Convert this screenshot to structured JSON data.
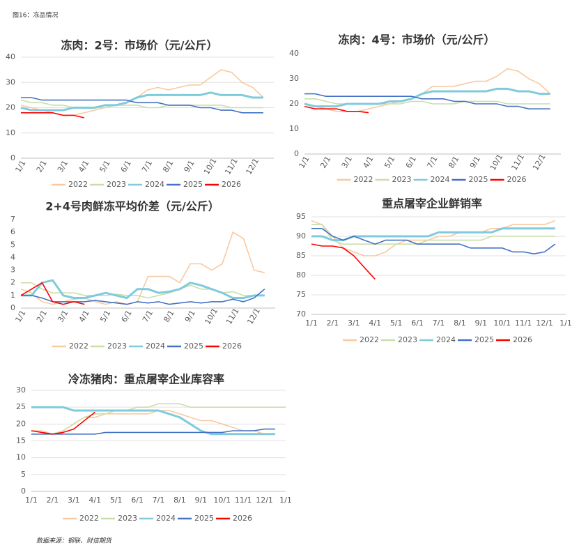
{
  "caption": "图16：冻品情况",
  "source": "数据来源：钢联、财信期货",
  "chart_data": [
    {
      "type": "line",
      "title": "冻肉：2号：市场价（元/公斤）",
      "categories": [
        "1/1",
        null,
        "2/1",
        null,
        "3/1",
        null,
        "4/1",
        null,
        "5/1",
        null,
        "6/1",
        null,
        "7/1",
        null,
        "8/1",
        null,
        "9/1",
        null,
        "10/1",
        null,
        "11/1",
        null,
        "12/1",
        null
      ],
      "ylim": [
        0,
        40
      ],
      "yticks": [
        0,
        10,
        20,
        30,
        40
      ],
      "grid": true,
      "series": [
        {
          "name": "2022",
          "color": "#f9c9a0",
          "values": [
            21,
            20,
            19,
            18,
            17,
            17,
            18,
            19,
            20,
            21,
            22,
            24,
            27,
            28,
            27,
            28,
            29,
            29,
            32,
            35,
            34,
            30,
            28,
            24
          ]
        },
        {
          "name": "2023",
          "color": "#c9dfa8",
          "values": [
            23,
            22,
            22,
            21,
            21,
            20,
            20,
            20,
            20,
            21,
            21,
            21,
            20,
            20,
            21,
            21,
            21,
            21,
            21,
            21,
            20,
            20,
            20,
            20
          ]
        },
        {
          "name": "2024",
          "color": "#7fcbdc",
          "values": [
            20,
            19,
            19,
            19,
            19,
            20,
            20,
            20,
            21,
            21,
            22,
            24,
            25,
            25,
            25,
            25,
            25,
            25,
            26,
            25,
            25,
            25,
            24,
            24
          ]
        },
        {
          "name": "2025",
          "color": "#4472c4",
          "values": [
            24,
            24,
            23,
            23,
            23,
            23,
            23,
            23,
            23,
            23,
            23,
            22,
            22,
            22,
            21,
            21,
            21,
            20,
            20,
            19,
            19,
            18,
            18,
            18
          ]
        },
        {
          "name": "2026",
          "color": "#ff0000",
          "values": [
            18,
            18,
            18,
            18,
            17,
            17,
            16,
            null,
            null,
            null,
            null,
            null,
            null,
            null,
            null,
            null,
            null,
            null,
            null,
            null,
            null,
            null,
            null,
            null
          ]
        }
      ]
    },
    {
      "type": "line",
      "title": "冻肉：4号：市场价（元/公斤）",
      "categories": [
        "1/1",
        null,
        "2/1",
        null,
        "3/1",
        null,
        "4/1",
        null,
        "5/1",
        null,
        "6/1",
        null,
        "7/1",
        null,
        "8/1",
        null,
        "9/1",
        null,
        "10/1",
        null,
        "11/1",
        null,
        "12/1",
        null
      ],
      "ylim": [
        0,
        40
      ],
      "yticks": [
        0,
        10,
        20,
        30,
        40
      ],
      "grid": false,
      "series": [
        {
          "name": "2022",
          "color": "#f9c9a0",
          "values": [
            20,
            19,
            18,
            17,
            17,
            17,
            18,
            19,
            20,
            21,
            22,
            24,
            27,
            27,
            27,
            28,
            29,
            29,
            31,
            34,
            33,
            30,
            28,
            24
          ]
        },
        {
          "name": "2023",
          "color": "#c9dfa8",
          "values": [
            22,
            22,
            21,
            20,
            20,
            20,
            20,
            20,
            20,
            20,
            21,
            21,
            20,
            20,
            20,
            21,
            21,
            21,
            21,
            20,
            20,
            20,
            20,
            20
          ]
        },
        {
          "name": "2024",
          "color": "#7fcbdc",
          "values": [
            20,
            19,
            19,
            19,
            20,
            20,
            20,
            20,
            21,
            21,
            22,
            24,
            25,
            25,
            25,
            25,
            25,
            25,
            26,
            26,
            25,
            25,
            24,
            24
          ]
        },
        {
          "name": "2025",
          "color": "#4472c4",
          "values": [
            24,
            24,
            23,
            23,
            23,
            23,
            23,
            23,
            23,
            23,
            23,
            22,
            22,
            22,
            21,
            21,
            20,
            20,
            20,
            19,
            19,
            18,
            18,
            18
          ]
        },
        {
          "name": "2026",
          "color": "#ff0000",
          "values": [
            19,
            18,
            18,
            18,
            17,
            17,
            16.5,
            null,
            null,
            null,
            null,
            null,
            null,
            null,
            null,
            null,
            null,
            null,
            null,
            null,
            null,
            null,
            null,
            null
          ]
        }
      ]
    },
    {
      "type": "line",
      "title": "2+4号肉鲜冻平均价差（元/公斤）",
      "categories": [
        "1/1",
        null,
        "2/1",
        null,
        "3/1",
        null,
        "4/1",
        null,
        "5/1",
        null,
        "6/1",
        null,
        "7/1",
        null,
        "8/1",
        null,
        "9/1",
        null,
        "10/1",
        null,
        "11/1",
        null,
        "12/1",
        null
      ],
      "ylim": [
        0,
        7
      ],
      "yticks": [
        0,
        1,
        2,
        3,
        4,
        5,
        6,
        7
      ],
      "grid": false,
      "series": [
        {
          "name": "2022",
          "color": "#f9c9a0",
          "values": [
            1.5,
            1.2,
            0.5,
            0.3,
            0.5,
            0.7,
            0.8,
            0.5,
            0.3,
            0.5,
            0.3,
            0.5,
            2.5,
            2.5,
            2.5,
            2,
            3.5,
            3.5,
            3,
            3.5,
            6,
            5.5,
            3,
            2.8
          ]
        },
        {
          "name": "2023",
          "color": "#c9dfa8",
          "values": [
            2,
            2,
            1.5,
            1.2,
            1.2,
            1.2,
            1,
            1,
            1,
            1.1,
            1,
            1,
            0.8,
            1,
            1.2,
            1.5,
            1.8,
            1.5,
            1.5,
            1.2,
            1.3,
            1,
            1,
            1
          ]
        },
        {
          "name": "2024",
          "color": "#7fcbdc",
          "values": [
            1,
            1,
            2,
            2.2,
            1,
            0.8,
            0.8,
            1,
            1.2,
            1,
            0.8,
            1.5,
            1.5,
            1.2,
            1.3,
            1.5,
            2,
            1.8,
            1.5,
            1.2,
            0.8,
            0.8,
            1,
            1
          ]
        },
        {
          "name": "2025",
          "color": "#4472c4",
          "values": [
            1,
            1,
            0.8,
            0.5,
            0.5,
            0.5,
            0.5,
            0.6,
            0.5,
            0.4,
            0.3,
            0.5,
            0.4,
            0.5,
            0.3,
            0.4,
            0.5,
            0.4,
            0.5,
            0.5,
            0.7,
            0.5,
            0.8,
            1.5
          ]
        },
        {
          "name": "2026",
          "color": "#ff0000",
          "values": [
            1,
            1.5,
            2,
            0.5,
            0.3,
            0.5,
            0.3,
            null,
            null,
            null,
            null,
            null,
            null,
            null,
            null,
            null,
            null,
            null,
            null,
            null,
            null,
            null,
            null,
            null
          ]
        }
      ]
    },
    {
      "type": "line",
      "title": "重点屠宰企业鲜销率",
      "categories": [
        "1/1",
        null,
        "2/1",
        null,
        "3/1",
        null,
        "4/1",
        null,
        "5/1",
        null,
        "6/1",
        null,
        "7/1",
        null,
        "8/1",
        null,
        "9/1",
        null,
        "10/1",
        null,
        "11/1",
        null,
        "12/1",
        null,
        "1/1"
      ],
      "ylim": [
        70,
        95
      ],
      "yticks": [
        70,
        75,
        80,
        85,
        90,
        95
      ],
      "grid": true,
      "series": [
        {
          "name": "2022",
          "color": "#f9c9a0",
          "values": [
            94,
            93,
            90,
            87,
            86,
            85,
            85,
            86,
            88,
            89,
            89,
            89,
            90,
            90,
            91,
            91,
            91,
            92,
            92,
            93,
            93,
            93,
            93,
            94,
            null
          ]
        },
        {
          "name": "2023",
          "color": "#c9dfa8",
          "values": [
            93,
            93,
            89,
            88,
            88,
            88,
            88,
            88,
            88,
            88,
            88,
            89,
            89,
            89,
            89,
            89,
            89,
            90,
            90,
            90,
            90,
            90,
            90,
            90,
            null
          ]
        },
        {
          "name": "2024",
          "color": "#7fcbdc",
          "values": [
            90,
            90,
            89,
            89,
            90,
            90,
            90,
            90,
            90,
            90,
            90,
            90,
            91,
            91,
            91,
            91,
            91,
            91,
            92,
            92,
            92,
            92,
            92,
            92,
            null
          ]
        },
        {
          "name": "2025",
          "color": "#4472c4",
          "values": [
            92,
            92,
            90,
            89,
            90,
            89,
            88,
            89,
            89,
            89,
            88,
            88,
            88,
            88,
            88,
            87,
            87,
            87,
            87,
            86,
            86,
            85.5,
            86,
            88,
            null
          ]
        },
        {
          "name": "2026",
          "color": "#ff0000",
          "values": [
            88,
            87.5,
            87.5,
            87,
            85,
            82,
            79,
            null,
            null,
            null,
            null,
            null,
            null,
            null,
            null,
            null,
            null,
            null,
            null,
            null,
            null,
            null,
            null,
            null,
            null
          ]
        }
      ]
    },
    {
      "type": "line",
      "title": "冷冻猪肉：重点屠宰企业库容率",
      "categories": [
        "1/1",
        null,
        "2/1",
        null,
        "3/1",
        null,
        "4/1",
        null,
        "5/1",
        null,
        "6/1",
        null,
        "7/1",
        null,
        "8/1",
        null,
        "9/1",
        null,
        "10/1",
        null,
        "11/1",
        null,
        "12/1",
        null,
        "1/1"
      ],
      "ylim": [
        0,
        30
      ],
      "yticks": [
        0,
        5,
        10,
        15,
        20,
        25,
        30
      ],
      "grid": true,
      "series": [
        {
          "name": "2022",
          "color": "#f9c9a0",
          "values": [
            18,
            18,
            17,
            18,
            20,
            22,
            22,
            23,
            23,
            23,
            23,
            23,
            24,
            24,
            23,
            22,
            21,
            21,
            20,
            19,
            18,
            18,
            17,
            17,
            null
          ]
        },
        {
          "name": "2023",
          "color": "#c9dfa8",
          "values": [
            17,
            17,
            17,
            18,
            20,
            22,
            23,
            23,
            24,
            24,
            25,
            25,
            26,
            26,
            26,
            25,
            25,
            25,
            25,
            25,
            25,
            25,
            25,
            25,
            25
          ]
        },
        {
          "name": "2024",
          "color": "#7fcbdc",
          "values": [
            25,
            25,
            25,
            25,
            24,
            24,
            24,
            24,
            24,
            24,
            24,
            24,
            24,
            23,
            22,
            20,
            18,
            17,
            17,
            17,
            17,
            17,
            17,
            17,
            null
          ]
        },
        {
          "name": "2025",
          "color": "#4472c4",
          "values": [
            17,
            17,
            17,
            17,
            17,
            17,
            17,
            17.5,
            17.5,
            17.5,
            17.5,
            17.5,
            17.5,
            17.5,
            17.5,
            17.5,
            17.5,
            17.5,
            17.5,
            18,
            18,
            18,
            18.5,
            18.5,
            null
          ]
        },
        {
          "name": "2026",
          "color": "#ff0000",
          "values": [
            18,
            17.5,
            17,
            17.5,
            18.5,
            21,
            23.5,
            null,
            null,
            null,
            null,
            null,
            null,
            null,
            null,
            null,
            null,
            null,
            null,
            null,
            null,
            null,
            null,
            null,
            null
          ]
        }
      ]
    }
  ]
}
